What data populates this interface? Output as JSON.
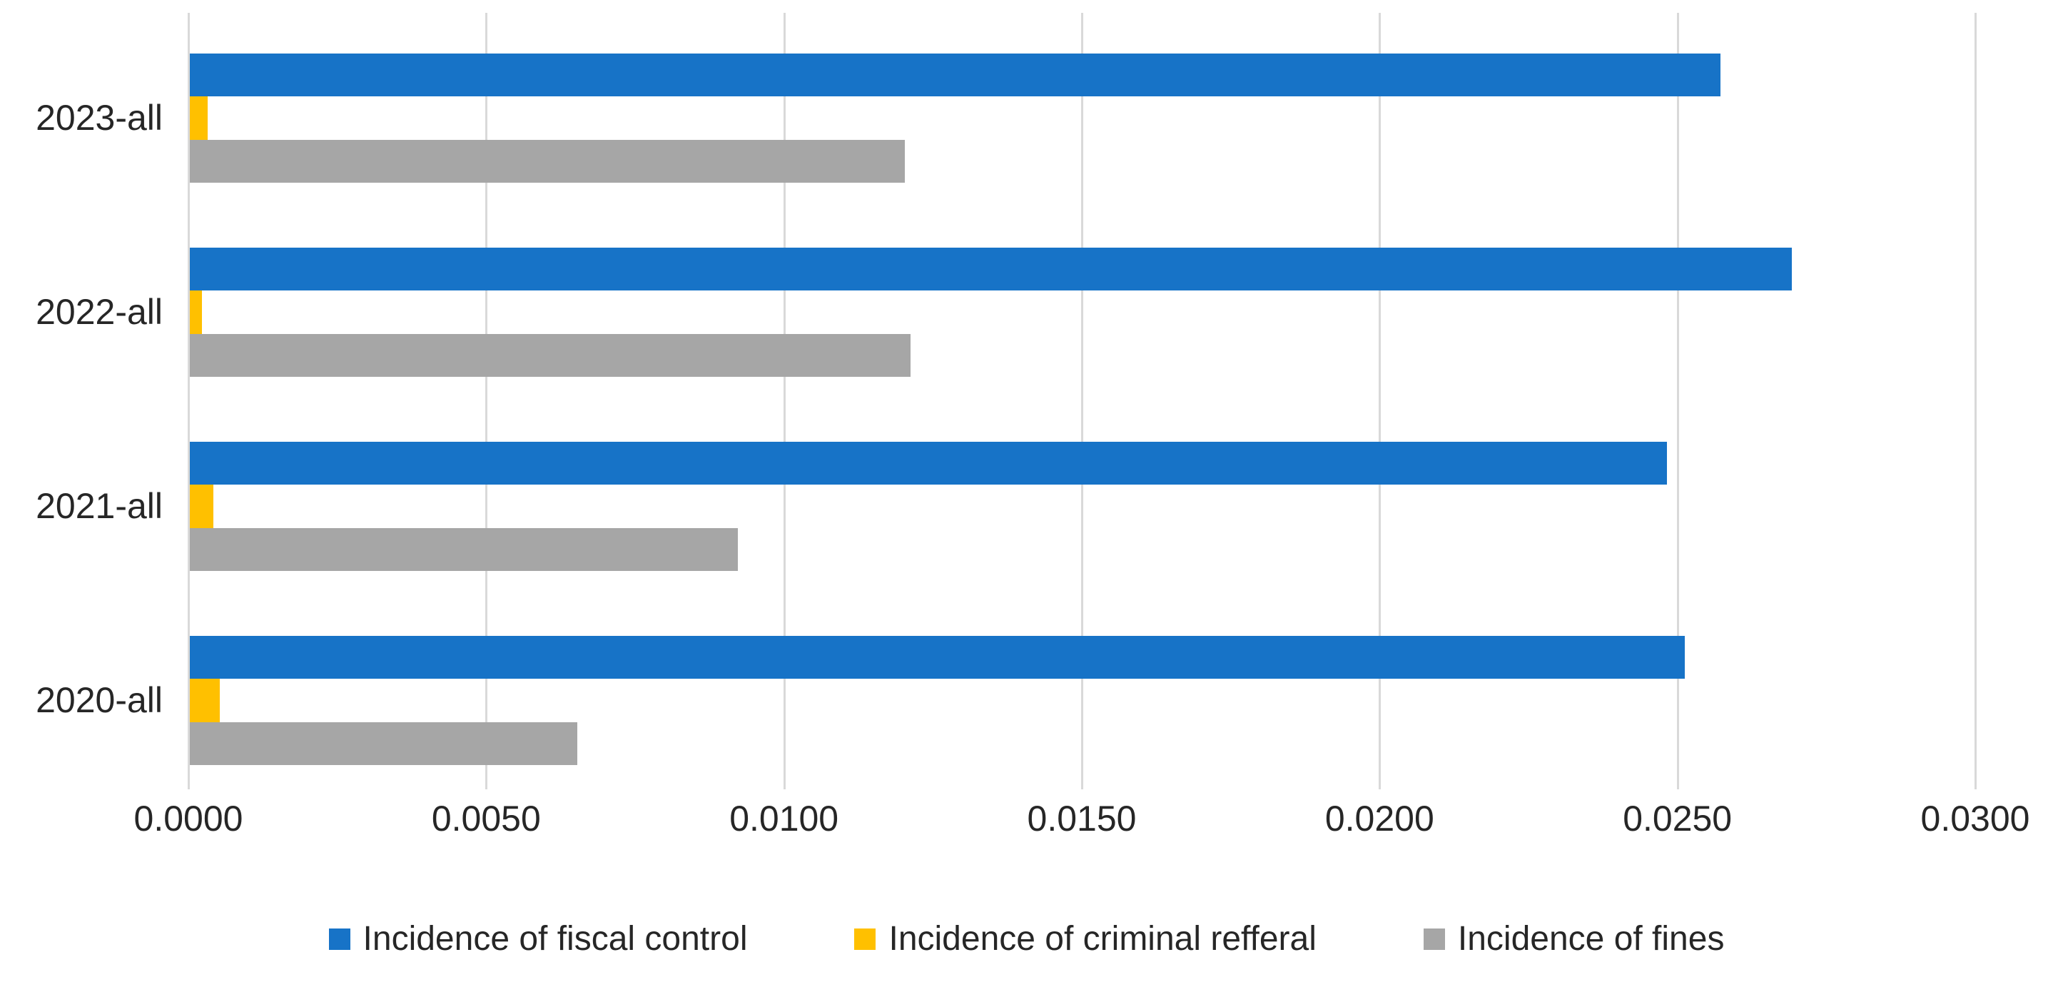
{
  "chart_data": {
    "type": "bar",
    "orientation": "horizontal",
    "title": "",
    "categories": [
      "2023-all",
      "2022-all",
      "2021-all",
      "2020-all"
    ],
    "series": [
      {
        "name": "Incidence of fiscal control",
        "color": "#1773C7",
        "values": [
          0.0257,
          0.0269,
          0.0248,
          0.0251
        ]
      },
      {
        "name": "Incidence of criminal refferal",
        "color": "#FFC000",
        "values": [
          0.0003,
          0.0002,
          0.0004,
          0.0005
        ]
      },
      {
        "name": "Incidence of fines",
        "color": "#A6A6A6",
        "values": [
          0.012,
          0.0121,
          0.0092,
          0.0065
        ]
      }
    ],
    "x_axis": {
      "min": 0,
      "max": 0.03,
      "tick_step": 0.005,
      "tick_labels": [
        "0.0000",
        "0.0050",
        "0.0100",
        "0.0150",
        "0.0200",
        "0.0250",
        "0.0300"
      ]
    },
    "grid": true,
    "gridline_color": "#D9D9D9",
    "text_color": "#262626",
    "background_color": "#FFFFFF",
    "legend_position": "bottom"
  }
}
